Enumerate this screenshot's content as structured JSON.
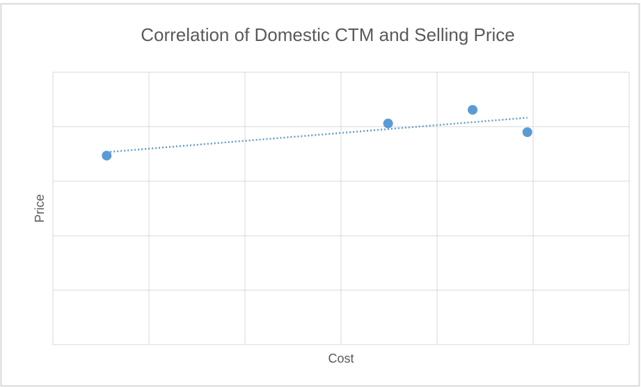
{
  "chart_data": {
    "type": "scatter",
    "title": "Correlation of Domestic CTM and Selling Price",
    "x_label": "Cost",
    "y_label": "Price",
    "x": [
      0.56,
      3.49,
      4.37,
      4.94
    ],
    "series": [
      {
        "color": "#5b9bd5",
        "values": [
          3.47,
          4.06,
          4.31,
          3.9
        ]
      }
    ],
    "xlim": [
      0,
      6
    ],
    "ylim": [
      0,
      5
    ],
    "xticks": [
      0,
      1,
      2,
      3,
      4,
      5,
      6
    ],
    "yticks": [
      0,
      1,
      2,
      3,
      4,
      5
    ],
    "tick_labels": false,
    "grid": true,
    "trendline": true
  }
}
